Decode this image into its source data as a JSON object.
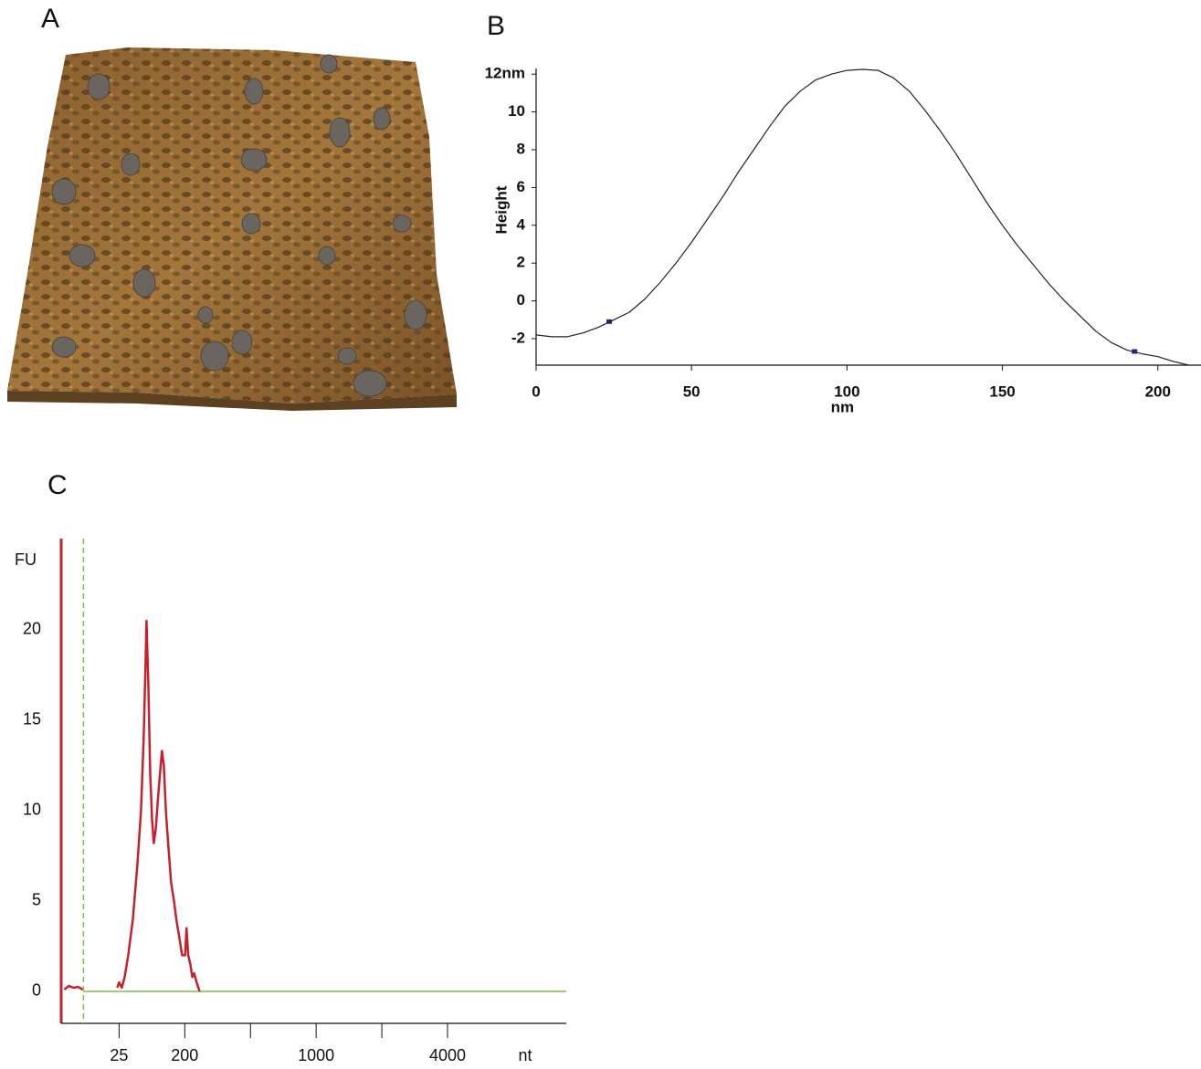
{
  "panel_labels": [
    "A",
    "B",
    "C"
  ],
  "chart_data": [
    {
      "type": "line",
      "x_label": "nm",
      "y_label": "Height",
      "color": "#222222",
      "x": [
        0,
        5,
        10,
        15,
        20,
        25,
        30,
        35,
        40,
        45,
        50,
        55,
        60,
        65,
        70,
        75,
        80,
        85,
        90,
        95,
        100,
        105,
        110,
        115,
        120,
        125,
        130,
        135,
        140,
        145,
        150,
        155,
        160,
        165,
        170,
        175,
        180,
        185,
        190,
        195,
        200,
        205,
        210
      ],
      "values": [
        -1.8,
        -1.9,
        -1.9,
        -1.7,
        -1.4,
        -1.0,
        -0.6,
        0.1,
        1.0,
        2.0,
        3.1,
        4.3,
        5.5,
        6.8,
        8.0,
        9.2,
        10.3,
        11.1,
        11.7,
        12.0,
        12.2,
        12.25,
        12.2,
        11.8,
        11.1,
        10.1,
        9.0,
        7.8,
        6.5,
        5.2,
        4.0,
        2.9,
        1.9,
        0.9,
        0.0,
        -0.8,
        -1.6,
        -2.2,
        -2.6,
        -2.8,
        -2.95,
        -3.2,
        -3.4
      ],
      "cursors_x": [
        23.5,
        192.5
      ],
      "cursor_color": "#1a2a7a",
      "xlim": [
        0,
        213
      ],
      "ylim": [
        -3.4,
        12.3
      ],
      "xticks": [
        0,
        50,
        100,
        150,
        200
      ],
      "yticks": [
        -2,
        0,
        2,
        4,
        6,
        8,
        10,
        {
          "value": 12,
          "label": "12nm"
        }
      ]
    },
    {
      "type": "line",
      "x_scale": "ladder",
      "x_label": "nt",
      "y_label": "FU",
      "color": "#c8202a",
      "axis_color": "#c8202a",
      "marker_color": "#7ac143",
      "marker_line": 8.1,
      "x": [
        4.4,
        5.1,
        5.9,
        6.8,
        7.9,
        null,
        23.6,
        25,
        27.3,
        29.8,
        33.4,
        38.7,
        44.6,
        50,
        54.4,
        57.7,
        59.5,
        63,
        67,
        71,
        75,
        80,
        85,
        91,
        97,
        103,
        110,
        119,
        130,
        142,
        153,
        168,
        184,
        201,
        205,
        210,
        216,
        222,
        228,
        236,
        246
      ],
      "values": [
        0.1,
        0.3,
        0.2,
        0.25,
        0.1,
        null,
        0.2,
        0.5,
        0.2,
        0.8,
        2,
        4,
        7,
        10,
        14,
        18,
        20.5,
        17,
        12,
        9.5,
        8.2,
        9,
        10.5,
        12,
        13.3,
        12.5,
        10,
        8,
        6,
        5,
        4,
        3,
        2,
        2,
        3.5,
        2,
        1.5,
        0.8,
        1,
        0.5,
        0
      ],
      "xlim": [
        4,
        14000
      ],
      "ylim": [
        -1.77,
        25.05
      ],
      "xticks": [
        25,
        200,
        {
          "value": 500,
          "label": null
        },
        1000,
        {
          "value": 2000,
          "label": null
        },
        4000
      ],
      "yticks": [
        0,
        5,
        10,
        15,
        20
      ]
    }
  ]
}
